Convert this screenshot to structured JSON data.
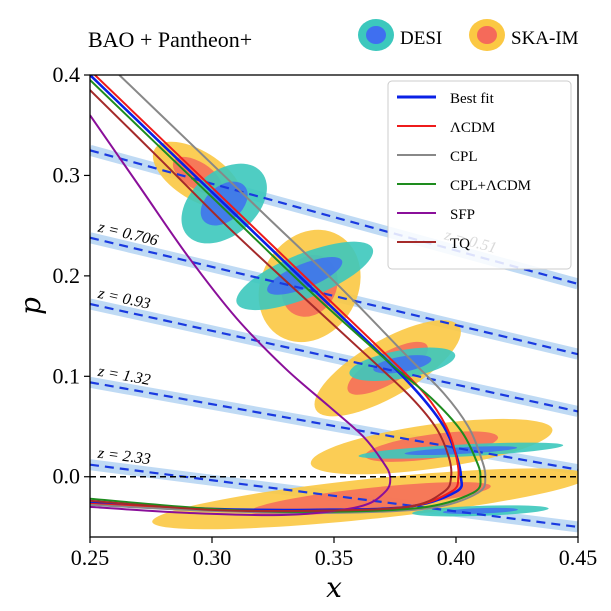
{
  "chart_data": {
    "type": "line",
    "title": "BAO + Pantheon+",
    "xlabel": "x",
    "ylabel": "p",
    "xlim": [
      0.25,
      0.45
    ],
    "ylim": [
      -0.06,
      0.4
    ],
    "xticks": [
      "0.25",
      "0.30",
      "0.35",
      "0.40",
      "0.45"
    ],
    "yticks": [
      "0.0",
      "0.1",
      "0.2",
      "0.3",
      "0.4"
    ],
    "xtick_values": [
      0.25,
      0.3,
      0.35,
      0.4,
      0.45
    ],
    "ytick_values": [
      0.0,
      0.1,
      0.2,
      0.3,
      0.4
    ],
    "zero_line": {
      "y": 0.0,
      "style": "dashed",
      "color": "#000000"
    },
    "contour_legend": [
      {
        "name": "DESI",
        "outer": "#3cc8bd",
        "inner": "#3f6ff0"
      },
      {
        "name": "SKA-IM",
        "outer": "#fbc843",
        "inner": "#f56a5a"
      }
    ],
    "series": [
      {
        "name": "Best fit",
        "color": "#0a20e6",
        "x": [
          0.25,
          0.28,
          0.31,
          0.34,
          0.37,
          0.385,
          0.395,
          0.4,
          0.402,
          0.4,
          0.38,
          0.34,
          0.3,
          0.25
        ],
        "y": [
          0.4,
          0.33,
          0.26,
          0.19,
          0.12,
          0.082,
          0.05,
          0.022,
          0.0,
          -0.015,
          -0.03,
          -0.033,
          -0.032,
          -0.026
        ]
      },
      {
        "name": "ΛCDM",
        "color": "#ee1b1b",
        "x": [
          0.252,
          0.282,
          0.312,
          0.342,
          0.372,
          0.387,
          0.396,
          0.4,
          0.401,
          0.398,
          0.38,
          0.34,
          0.3,
          0.25
        ],
        "y": [
          0.4,
          0.33,
          0.26,
          0.19,
          0.12,
          0.083,
          0.05,
          0.021,
          0.0,
          -0.015,
          -0.03,
          -0.034,
          -0.033,
          -0.027
        ]
      },
      {
        "name": "CPL",
        "color": "#888888",
        "x": [
          0.262,
          0.292,
          0.322,
          0.352,
          0.38,
          0.395,
          0.405,
          0.41,
          0.412,
          0.409,
          0.39,
          0.35,
          0.3,
          0.25
        ],
        "y": [
          0.4,
          0.33,
          0.26,
          0.19,
          0.12,
          0.083,
          0.05,
          0.021,
          0.0,
          -0.016,
          -0.031,
          -0.036,
          -0.034,
          -0.028
        ]
      },
      {
        "name": "CPL+ΛCDM",
        "color": "#1e8c1e",
        "x": [
          0.25,
          0.28,
          0.31,
          0.34,
          0.372,
          0.39,
          0.402,
          0.408,
          0.41,
          0.407,
          0.385,
          0.34,
          0.3,
          0.25
        ],
        "y": [
          0.395,
          0.325,
          0.255,
          0.185,
          0.115,
          0.078,
          0.046,
          0.018,
          0.0,
          -0.016,
          -0.031,
          -0.035,
          -0.032,
          -0.022
        ]
      },
      {
        "name": "SFP",
        "color": "#8a0f9a",
        "x": [
          0.25,
          0.27,
          0.29,
          0.31,
          0.33,
          0.348,
          0.362,
          0.37,
          0.373,
          0.371,
          0.36,
          0.33,
          0.29,
          0.25
        ],
        "y": [
          0.36,
          0.29,
          0.22,
          0.158,
          0.108,
          0.07,
          0.04,
          0.015,
          0.0,
          -0.015,
          -0.03,
          -0.038,
          -0.036,
          -0.03
        ]
      },
      {
        "name": "TQ",
        "color": "#a52a2a",
        "x": [
          0.25,
          0.278,
          0.306,
          0.336,
          0.366,
          0.382,
          0.392,
          0.397,
          0.398,
          0.395,
          0.38,
          0.34,
          0.3,
          0.25
        ],
        "y": [
          0.385,
          0.318,
          0.25,
          0.182,
          0.115,
          0.078,
          0.048,
          0.02,
          0.0,
          -0.015,
          -0.03,
          -0.034,
          -0.033,
          -0.024
        ]
      }
    ],
    "redshift_lines": [
      {
        "label": "z = 0.51",
        "x": [
          0.25,
          0.45
        ],
        "y": [
          0.325,
          0.192
        ]
      },
      {
        "label": "z = 0.706",
        "x": [
          0.25,
          0.45
        ],
        "y": [
          0.238,
          0.122
        ]
      },
      {
        "label": "z = 0.93",
        "x": [
          0.25,
          0.45
        ],
        "y": [
          0.172,
          0.065
        ]
      },
      {
        "label": "z = 1.32",
        "x": [
          0.25,
          0.45
        ],
        "y": [
          0.094,
          0.007
        ]
      },
      {
        "label": "z = 2.33",
        "x": [
          0.25,
          0.45
        ],
        "y": [
          0.012,
          -0.05
        ]
      }
    ],
    "contours": [
      {
        "survey": "SKA-IM",
        "cx": 0.294,
        "cy": 0.3,
        "rx": 0.01,
        "ry": 0.05,
        "angle": -58
      },
      {
        "survey": "DESI",
        "cx": 0.305,
        "cy": 0.272,
        "rx": 0.02,
        "ry": 0.032,
        "angle": -40
      },
      {
        "survey": "DESI",
        "cx": 0.338,
        "cy": 0.2,
        "rx": 0.03,
        "ry": 0.022,
        "angle": -22
      },
      {
        "survey": "SKA-IM",
        "cx": 0.34,
        "cy": 0.19,
        "rx": 0.024,
        "ry": 0.048,
        "angle": -60
      },
      {
        "survey": "SKA-IM",
        "cx": 0.372,
        "cy": 0.108,
        "rx": 0.034,
        "ry": 0.028,
        "angle": -30
      },
      {
        "survey": "DESI",
        "cx": 0.378,
        "cy": 0.112,
        "rx": 0.022,
        "ry": 0.014,
        "angle": -10
      },
      {
        "survey": "SKA-IM",
        "cx": 0.39,
        "cy": 0.03,
        "rx": 0.05,
        "ry": 0.022,
        "angle": -8
      },
      {
        "survey": "DESI",
        "cx": 0.402,
        "cy": 0.026,
        "rx": 0.042,
        "ry": 0.006,
        "angle": -3
      },
      {
        "survey": "SKA-IM",
        "cx": 0.365,
        "cy": -0.022,
        "rx": 0.09,
        "ry": 0.02,
        "angle": -6
      },
      {
        "survey": "DESI",
        "cx": 0.41,
        "cy": -0.034,
        "rx": 0.028,
        "ry": 0.005,
        "angle": -2
      }
    ]
  }
}
